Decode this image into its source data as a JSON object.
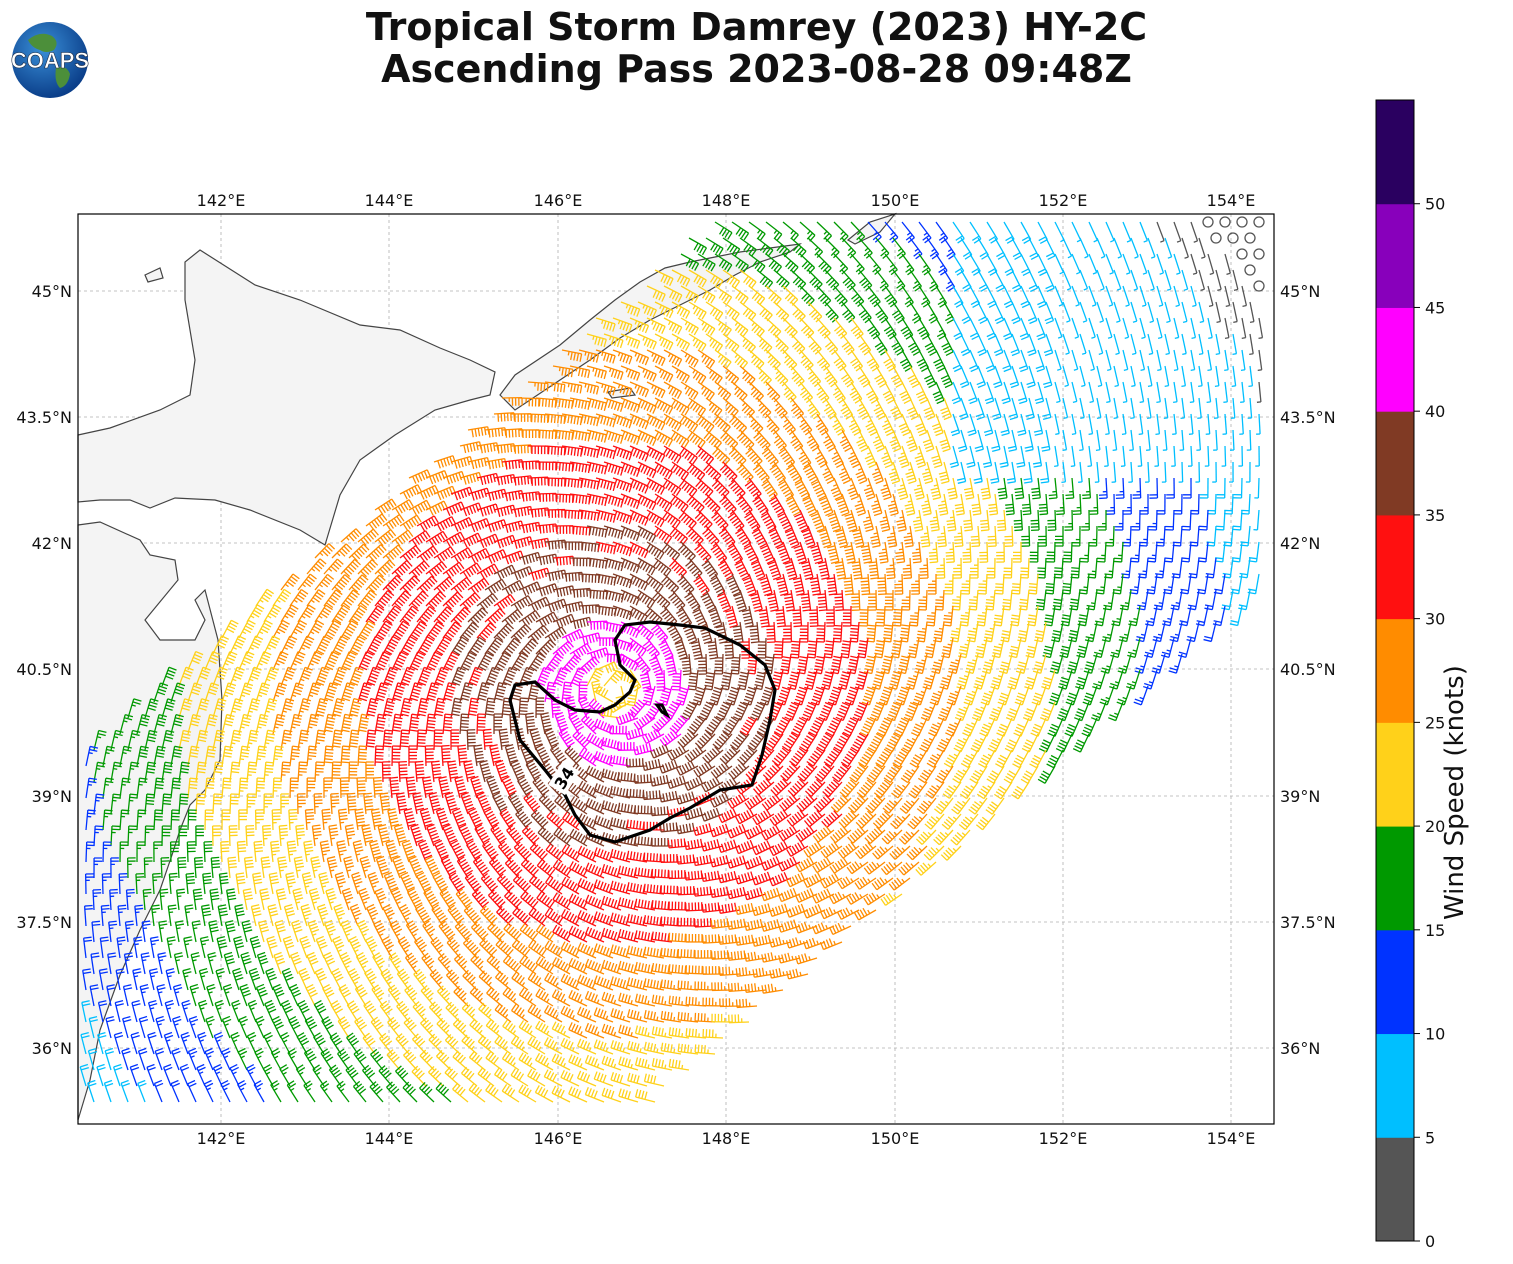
{
  "title": {
    "line1": "Tropical Storm Damrey (2023) HY-2C",
    "line2": "Ascending Pass 2023-08-28 09:48Z"
  },
  "logo": {
    "text": "COAPS"
  },
  "map": {
    "lon_ticks": [
      "142°E",
      "144°E",
      "146°E",
      "148°E",
      "150°E",
      "152°E",
      "154°E"
    ],
    "lat_ticks": [
      "45°N",
      "43.5°N",
      "42°N",
      "40.5°N",
      "39°N",
      "37.5°N",
      "36°N"
    ],
    "contour_label": "34"
  },
  "colorbar": {
    "label": "Wind Speed (knots)",
    "ticks": [
      "0",
      "5",
      "10",
      "15",
      "20",
      "25",
      "30",
      "35",
      "40",
      "45",
      "50"
    ],
    "colors": [
      "#555555",
      "#00bfff",
      "#0033ff",
      "#009900",
      "#ffd11a",
      "#ff8c00",
      "#ff1010",
      "#803a24",
      "#ff00ff",
      "#8800bb",
      "#2a0060"
    ]
  }
}
